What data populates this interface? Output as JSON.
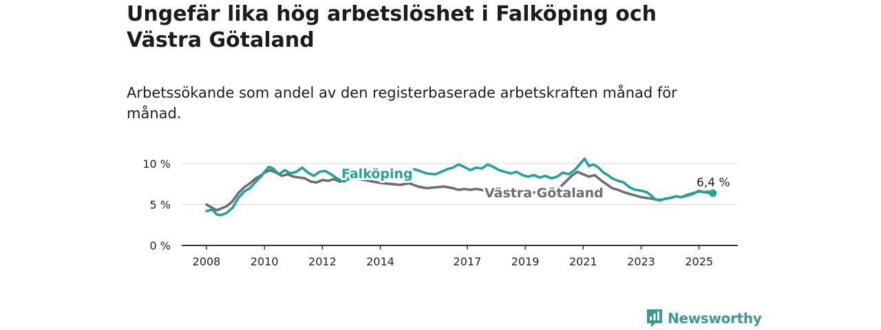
{
  "title": "Ungefär lika hög arbetslöshet i Falköping och Västra Götaland",
  "subtitle": "Arbetssökande som andel av den registerbaserade arbetskraften månad för månad.",
  "brand": {
    "name": "Newsworthy",
    "color": "#3a9a8f",
    "icon": "bar-chart-badge-icon"
  },
  "chart_data": {
    "type": "line",
    "title": "Ungefär lika hög arbetslöshet i Falköping och Västra Götaland",
    "subtitle": "Arbetssökande som andel av den registerbaserade arbetskraften månad för månad.",
    "xlabel": "",
    "ylabel": "",
    "x_ticks": [
      "2008",
      "2010",
      "2012",
      "2014",
      "2017",
      "2019",
      "2021",
      "2023",
      "2025"
    ],
    "y_ticks": [
      "0 %",
      "5 %",
      "10 %"
    ],
    "y_tick_values": [
      0,
      5,
      10
    ],
    "ylim": [
      0,
      10.5
    ],
    "grid": "horizontal",
    "end_label": "6,4 %",
    "series": [
      {
        "name": "Falköping",
        "color": "#22a398",
        "points": [
          [
            2008.0,
            4.2
          ],
          [
            2008.2,
            4.4
          ],
          [
            2008.35,
            3.8
          ],
          [
            2008.5,
            3.7
          ],
          [
            2008.7,
            4.0
          ],
          [
            2008.9,
            4.6
          ],
          [
            2009.1,
            5.8
          ],
          [
            2009.3,
            6.6
          ],
          [
            2009.5,
            7.0
          ],
          [
            2009.7,
            7.8
          ],
          [
            2009.9,
            8.5
          ],
          [
            2010.0,
            9.0
          ],
          [
            2010.15,
            9.6
          ],
          [
            2010.3,
            9.4
          ],
          [
            2010.5,
            8.7
          ],
          [
            2010.7,
            9.2
          ],
          [
            2010.9,
            8.8
          ],
          [
            2011.1,
            9.0
          ],
          [
            2011.3,
            9.5
          ],
          [
            2011.5,
            8.9
          ],
          [
            2011.7,
            8.5
          ],
          [
            2011.9,
            9.0
          ],
          [
            2012.1,
            9.1
          ],
          [
            2012.3,
            8.7
          ],
          [
            2012.5,
            8.2
          ],
          [
            2012.75,
            7.8
          ],
          [
            2013.0,
            8.6
          ],
          [
            2013.3,
            8.8
          ],
          [
            2013.6,
            8.5
          ],
          [
            2013.9,
            8.3
          ],
          [
            2014.1,
            8.4
          ],
          [
            2014.4,
            8.7
          ],
          [
            2014.8,
            9.0
          ],
          [
            2015.2,
            9.3
          ],
          [
            2015.6,
            8.8
          ],
          [
            2015.9,
            8.7
          ],
          [
            2016.1,
            9.0
          ],
          [
            2016.3,
            9.3
          ],
          [
            2016.5,
            9.5
          ],
          [
            2016.7,
            9.9
          ],
          [
            2016.9,
            9.6
          ],
          [
            2017.1,
            9.2
          ],
          [
            2017.3,
            9.5
          ],
          [
            2017.5,
            9.4
          ],
          [
            2017.7,
            9.9
          ],
          [
            2017.9,
            9.6
          ],
          [
            2018.1,
            9.2
          ],
          [
            2018.3,
            9.0
          ],
          [
            2018.5,
            8.8
          ],
          [
            2018.7,
            9.0
          ],
          [
            2018.9,
            8.6
          ],
          [
            2019.1,
            8.4
          ],
          [
            2019.3,
            8.6
          ],
          [
            2019.5,
            8.3
          ],
          [
            2019.7,
            8.5
          ],
          [
            2019.9,
            8.2
          ],
          [
            2020.1,
            8.4
          ],
          [
            2020.3,
            8.9
          ],
          [
            2020.5,
            8.7
          ],
          [
            2020.7,
            9.2
          ],
          [
            2020.9,
            10.0
          ],
          [
            2021.05,
            10.6
          ],
          [
            2021.2,
            9.7
          ],
          [
            2021.35,
            9.9
          ],
          [
            2021.5,
            9.6
          ],
          [
            2021.7,
            8.9
          ],
          [
            2021.85,
            8.6
          ],
          [
            2022.0,
            8.2
          ],
          [
            2022.2,
            7.9
          ],
          [
            2022.4,
            7.7
          ],
          [
            2022.6,
            7.1
          ],
          [
            2022.8,
            6.8
          ],
          [
            2023.0,
            6.7
          ],
          [
            2023.2,
            6.5
          ],
          [
            2023.35,
            6.1
          ],
          [
            2023.5,
            5.6
          ],
          [
            2023.65,
            5.5
          ],
          [
            2023.8,
            5.7
          ],
          [
            2024.0,
            5.8
          ],
          [
            2024.2,
            6.0
          ],
          [
            2024.4,
            5.9
          ],
          [
            2024.6,
            6.1
          ],
          [
            2024.8,
            6.3
          ],
          [
            2025.0,
            6.7
          ],
          [
            2025.15,
            6.5
          ],
          [
            2025.3,
            6.6
          ],
          [
            2025.45,
            6.4
          ]
        ]
      },
      {
        "name": "Västra Götaland",
        "color": "#6e6c71",
        "points": [
          [
            2008.0,
            5.0
          ],
          [
            2008.2,
            4.6
          ],
          [
            2008.35,
            4.3
          ],
          [
            2008.5,
            4.5
          ],
          [
            2008.7,
            4.8
          ],
          [
            2008.9,
            5.4
          ],
          [
            2009.1,
            6.4
          ],
          [
            2009.3,
            7.1
          ],
          [
            2009.5,
            7.6
          ],
          [
            2009.7,
            8.2
          ],
          [
            2009.9,
            8.6
          ],
          [
            2010.0,
            8.9
          ],
          [
            2010.2,
            9.2
          ],
          [
            2010.4,
            8.9
          ],
          [
            2010.6,
            8.5
          ],
          [
            2010.8,
            8.7
          ],
          [
            2011.0,
            8.4
          ],
          [
            2011.2,
            8.3
          ],
          [
            2011.4,
            8.2
          ],
          [
            2011.6,
            7.8
          ],
          [
            2011.8,
            7.7
          ],
          [
            2012.0,
            8.0
          ],
          [
            2012.2,
            7.9
          ],
          [
            2012.4,
            8.1
          ],
          [
            2012.6,
            7.8
          ],
          [
            2012.8,
            8.0
          ],
          [
            2013.0,
            8.2
          ],
          [
            2013.3,
            8.1
          ],
          [
            2013.6,
            7.9
          ],
          [
            2013.9,
            7.7
          ],
          [
            2014.1,
            7.6
          ],
          [
            2014.4,
            7.5
          ],
          [
            2014.7,
            7.4
          ],
          [
            2015.0,
            7.6
          ],
          [
            2015.3,
            7.2
          ],
          [
            2015.6,
            7.0
          ],
          [
            2015.9,
            7.1
          ],
          [
            2016.2,
            7.2
          ],
          [
            2016.5,
            7.0
          ],
          [
            2016.7,
            6.8
          ],
          [
            2016.9,
            6.9
          ],
          [
            2017.1,
            6.8
          ],
          [
            2017.3,
            6.9
          ],
          [
            2017.5,
            6.8
          ],
          [
            2017.7,
            6.6
          ],
          [
            2017.9,
            6.7
          ],
          [
            2018.2,
            6.6
          ],
          [
            2018.5,
            6.5
          ],
          [
            2018.8,
            6.4
          ],
          [
            2019.1,
            6.4
          ],
          [
            2019.4,
            6.5
          ],
          [
            2019.7,
            6.6
          ],
          [
            2020.0,
            6.7
          ],
          [
            2020.2,
            7.1
          ],
          [
            2020.4,
            7.8
          ],
          [
            2020.6,
            8.5
          ],
          [
            2020.8,
            9.0
          ],
          [
            2021.0,
            8.7
          ],
          [
            2021.2,
            8.4
          ],
          [
            2021.4,
            8.6
          ],
          [
            2021.6,
            8.0
          ],
          [
            2021.8,
            7.5
          ],
          [
            2022.0,
            7.0
          ],
          [
            2022.2,
            6.8
          ],
          [
            2022.4,
            6.5
          ],
          [
            2022.6,
            6.3
          ],
          [
            2022.8,
            6.1
          ],
          [
            2023.0,
            5.9
          ],
          [
            2023.2,
            5.8
          ],
          [
            2023.4,
            5.7
          ],
          [
            2023.55,
            5.6
          ],
          [
            2023.7,
            5.6
          ],
          [
            2023.85,
            5.7
          ],
          [
            2024.0,
            5.8
          ],
          [
            2024.2,
            6.0
          ],
          [
            2024.4,
            5.9
          ],
          [
            2024.6,
            6.2
          ],
          [
            2024.8,
            6.4
          ],
          [
            2025.0,
            6.6
          ],
          [
            2025.2,
            6.5
          ],
          [
            2025.4,
            6.4
          ]
        ]
      }
    ]
  }
}
